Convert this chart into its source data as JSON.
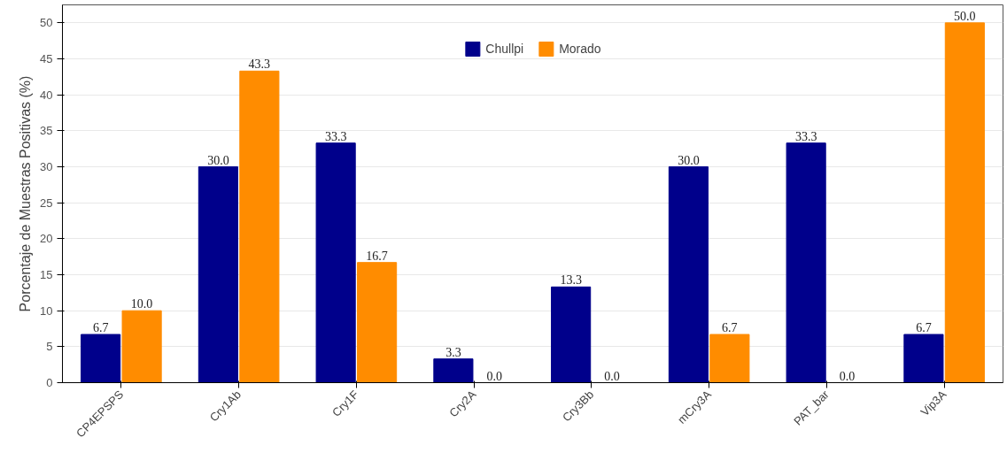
{
  "chart_data": {
    "type": "bar",
    "ylabel": "Porcentaje de Muestras Positivas (%)",
    "categories": [
      "CP4EPSPS",
      "Cry1Ab",
      "Cry1F",
      "Cry2A",
      "Cry3Bb",
      "mCry3A",
      "PAT_bar",
      "Vip3A"
    ],
    "series": [
      {
        "name": "Chullpi",
        "color": "#00008b",
        "values": [
          6.7,
          30.0,
          33.3,
          3.3,
          13.3,
          30.0,
          33.3,
          6.7
        ],
        "value_labels": [
          "6.7",
          "30.0",
          "33.3",
          "3.3",
          "13.3",
          "30.0",
          "33.3",
          "6.7"
        ]
      },
      {
        "name": "Morado",
        "color": "#ff8c00",
        "values": [
          10.0,
          43.3,
          16.7,
          0.0,
          0.0,
          6.7,
          0.0,
          50.0
        ],
        "value_labels": [
          "10.0",
          "43.3",
          "16.7",
          "0.0",
          "0.0",
          "6.7",
          "0.0",
          "50.0"
        ]
      }
    ],
    "ylim": [
      0,
      52.5
    ],
    "yticks": [
      0,
      5,
      10,
      15,
      20,
      25,
      30,
      35,
      40,
      45,
      50
    ],
    "grid": "y",
    "legend": "top"
  }
}
